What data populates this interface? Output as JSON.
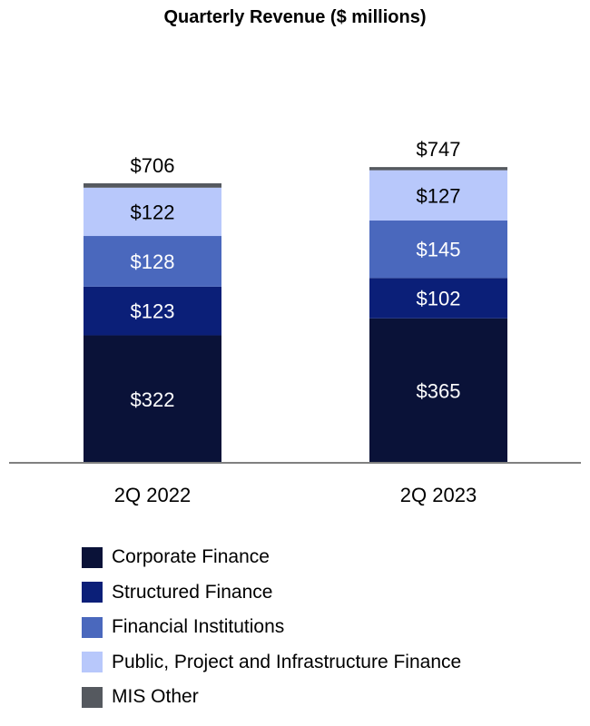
{
  "chart_data": {
    "type": "bar",
    "stacked": true,
    "title": "Quarterly Revenue ($ millions)",
    "categories": [
      "2Q 2022",
      "2Q 2023"
    ],
    "totals": [
      706,
      747
    ],
    "total_labels": [
      "$706",
      "$747"
    ],
    "series": [
      {
        "name": "Corporate Finance",
        "values": [
          322,
          365
        ],
        "labels": [
          "$322",
          "$365"
        ],
        "color": "#0a1238"
      },
      {
        "name": "Structured Finance",
        "values": [
          123,
          102
        ],
        "labels": [
          "$123",
          "$102"
        ],
        "color": "#0b1f78"
      },
      {
        "name": "Financial Institutions",
        "values": [
          128,
          145
        ],
        "labels": [
          "$128",
          "$145"
        ],
        "color": "#4a68bd"
      },
      {
        "name": "Public, Project and Infrastructure Finance",
        "values": [
          122,
          127
        ],
        "labels": [
          "$122",
          "$127"
        ],
        "color": "#b8c8fb"
      },
      {
        "name": "MIS Other",
        "values": [
          11,
          8
        ],
        "labels": [
          "",
          ""
        ],
        "color": "#55595f"
      }
    ],
    "label_colors": [
      "#ffffff",
      "#ffffff",
      "#ffffff",
      "#000000",
      "#000000"
    ],
    "ylim": [
      0,
      747
    ],
    "grid": false,
    "legend_position": "bottom-left"
  }
}
